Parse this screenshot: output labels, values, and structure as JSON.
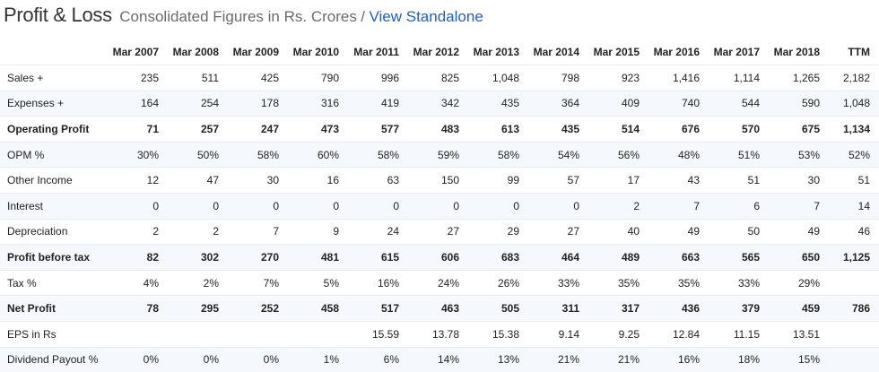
{
  "header": {
    "title": "Profit & Loss",
    "subtitle": "Consolidated Figures in Rs. Crores",
    "separator": "/",
    "link": "View Standalone"
  },
  "columns": [
    "Mar 2007",
    "Mar 2008",
    "Mar 2009",
    "Mar 2010",
    "Mar 2011",
    "Mar 2012",
    "Mar 2013",
    "Mar 2014",
    "Mar 2015",
    "Mar 2016",
    "Mar 2017",
    "Mar 2018",
    "TTM"
  ],
  "rows": [
    {
      "label": "Sales +",
      "bold": false,
      "values": [
        "235",
        "511",
        "425",
        "790",
        "996",
        "825",
        "1,048",
        "798",
        "923",
        "1,416",
        "1,114",
        "1,265",
        "2,182"
      ]
    },
    {
      "label": "Expenses +",
      "bold": false,
      "values": [
        "164",
        "254",
        "178",
        "316",
        "419",
        "342",
        "435",
        "364",
        "409",
        "740",
        "544",
        "590",
        "1,048"
      ]
    },
    {
      "label": "Operating Profit",
      "bold": true,
      "values": [
        "71",
        "257",
        "247",
        "473",
        "577",
        "483",
        "613",
        "435",
        "514",
        "676",
        "570",
        "675",
        "1,134"
      ]
    },
    {
      "label": "OPM %",
      "bold": false,
      "values": [
        "30%",
        "50%",
        "58%",
        "60%",
        "58%",
        "59%",
        "58%",
        "54%",
        "56%",
        "48%",
        "51%",
        "53%",
        "52%"
      ]
    },
    {
      "label": "Other Income",
      "bold": false,
      "values": [
        "12",
        "47",
        "30",
        "16",
        "63",
        "150",
        "99",
        "57",
        "17",
        "43",
        "51",
        "30",
        "51"
      ]
    },
    {
      "label": "Interest",
      "bold": false,
      "values": [
        "0",
        "0",
        "0",
        "0",
        "0",
        "0",
        "0",
        "0",
        "2",
        "7",
        "6",
        "7",
        "14"
      ]
    },
    {
      "label": "Depreciation",
      "bold": false,
      "values": [
        "2",
        "2",
        "7",
        "9",
        "24",
        "27",
        "29",
        "27",
        "40",
        "49",
        "50",
        "49",
        "46"
      ]
    },
    {
      "label": "Profit before tax",
      "bold": true,
      "values": [
        "82",
        "302",
        "270",
        "481",
        "615",
        "606",
        "683",
        "464",
        "489",
        "663",
        "565",
        "650",
        "1,125"
      ]
    },
    {
      "label": "Tax %",
      "bold": false,
      "values": [
        "4%",
        "2%",
        "7%",
        "5%",
        "16%",
        "24%",
        "26%",
        "33%",
        "35%",
        "35%",
        "33%",
        "29%",
        ""
      ]
    },
    {
      "label": "Net Profit",
      "bold": true,
      "values": [
        "78",
        "295",
        "252",
        "458",
        "517",
        "463",
        "505",
        "311",
        "317",
        "436",
        "379",
        "459",
        "786"
      ]
    },
    {
      "label": "EPS in Rs",
      "bold": false,
      "values": [
        "",
        "",
        "",
        "",
        "15.59",
        "13.78",
        "15.38",
        "9.14",
        "9.25",
        "12.84",
        "11.15",
        "13.51",
        ""
      ]
    },
    {
      "label": "Dividend Payout %",
      "bold": false,
      "values": [
        "0%",
        "0%",
        "0%",
        "1%",
        "6%",
        "14%",
        "13%",
        "21%",
        "21%",
        "16%",
        "18%",
        "15%",
        ""
      ]
    }
  ]
}
